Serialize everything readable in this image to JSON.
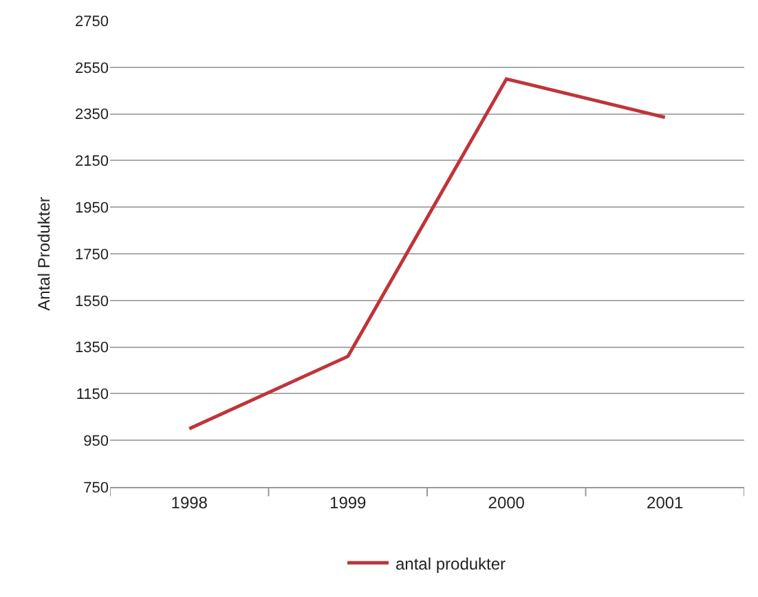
{
  "chart_data": {
    "type": "line",
    "ylabel": "Antal Produkter",
    "categories": [
      "1998",
      "1999",
      "2000",
      "2001"
    ],
    "series": [
      {
        "name": "antal produkter",
        "color": "#c0343a",
        "values": [
          1000,
          1310,
          2500,
          2335
        ]
      }
    ],
    "ylim": [
      750,
      2750
    ],
    "yticks": [
      750,
      950,
      1150,
      1350,
      1550,
      1750,
      1950,
      2150,
      2350,
      2550,
      2750
    ],
    "grid": "y",
    "legend": "bottom",
    "marker": "none",
    "line_style": "solid"
  }
}
